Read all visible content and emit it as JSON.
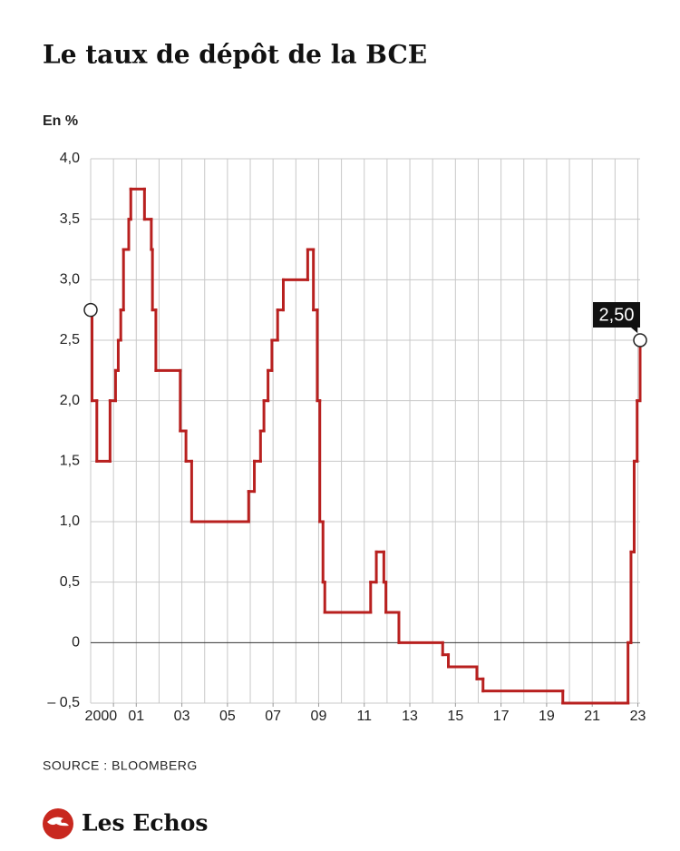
{
  "chart_data": {
    "type": "line",
    "line_style": "step",
    "title": "Le taux de dépôt de la BCE",
    "y_label": "En %",
    "source": "SOURCE : BLOOMBERG",
    "brand": "Les Echos",
    "grid": true,
    "xlim": [
      1999,
      2023.1
    ],
    "ylim": [
      -0.5,
      4.0
    ],
    "xticks": [
      {
        "value": 2000,
        "label": "2000"
      },
      {
        "value": 2001,
        "label": "01"
      },
      {
        "value": 2003,
        "label": "03"
      },
      {
        "value": 2005,
        "label": "05"
      },
      {
        "value": 2007,
        "label": "07"
      },
      {
        "value": 2009,
        "label": "09"
      },
      {
        "value": 2011,
        "label": "11"
      },
      {
        "value": 2013,
        "label": "13"
      },
      {
        "value": 2015,
        "label": "15"
      },
      {
        "value": 2017,
        "label": "17"
      },
      {
        "value": 2019,
        "label": "19"
      },
      {
        "value": 2021,
        "label": "21"
      },
      {
        "value": 2023,
        "label": "23"
      }
    ],
    "xgrid": [
      2000,
      2001,
      2002,
      2003,
      2004,
      2005,
      2006,
      2007,
      2008,
      2009,
      2010,
      2011,
      2012,
      2013,
      2014,
      2015,
      2016,
      2017,
      2018,
      2019,
      2020,
      2021,
      2022,
      2023
    ],
    "yticks": [
      {
        "value": 4.0,
        "label": "4,0"
      },
      {
        "value": 3.5,
        "label": "3,5"
      },
      {
        "value": 3.0,
        "label": "3,0"
      },
      {
        "value": 2.5,
        "label": "2,5"
      },
      {
        "value": 2.0,
        "label": "2,0"
      },
      {
        "value": 1.5,
        "label": "1,5"
      },
      {
        "value": 1.0,
        "label": "1,0"
      },
      {
        "value": 0.5,
        "label": "0,5"
      },
      0,
      {
        "value": -0.5,
        "label": "– 0,5"
      }
    ],
    "series": [
      {
        "name": "Taux de dépôt",
        "color": "#b8201f",
        "x": [
          1999.0,
          1999.06,
          1999.27,
          1999.85,
          2000.09,
          2000.21,
          2000.32,
          2000.44,
          2000.67,
          2000.76,
          2001.36,
          2001.66,
          2001.71,
          2001.86,
          2002.93,
          2003.18,
          2003.43,
          2005.93,
          2006.18,
          2006.45,
          2006.6,
          2006.78,
          2006.95,
          2007.2,
          2007.45,
          2008.52,
          2008.77,
          2008.94,
          2009.05,
          2009.19,
          2009.27,
          2011.28,
          2011.53,
          2011.86,
          2011.95,
          2012.52,
          2014.44,
          2014.69,
          2015.94,
          2016.21,
          2019.71,
          2022.57,
          2022.7,
          2022.84,
          2022.97,
          2023.1
        ],
        "values": [
          2.75,
          2.0,
          1.5,
          2.0,
          2.25,
          2.5,
          2.75,
          3.25,
          3.5,
          3.75,
          3.5,
          3.25,
          2.75,
          2.25,
          1.75,
          1.5,
          1.0,
          1.25,
          1.5,
          1.75,
          2.0,
          2.25,
          2.5,
          2.75,
          3.0,
          3.25,
          2.75,
          2.0,
          1.0,
          0.5,
          0.25,
          0.5,
          0.75,
          0.5,
          0.25,
          0.0,
          -0.1,
          -0.2,
          -0.3,
          -0.4,
          -0.5,
          0.0,
          0.75,
          1.5,
          2.0,
          2.5
        ],
        "value_labels": [
          null,
          null,
          null,
          null,
          null,
          null,
          null,
          null,
          null,
          null,
          null,
          null,
          null,
          null,
          null,
          null,
          null,
          null,
          null,
          null,
          null,
          null,
          null,
          null,
          null,
          null,
          null,
          null,
          null,
          null,
          null,
          null,
          null,
          null,
          null,
          null,
          null,
          null,
          null,
          null,
          null,
          null,
          null,
          null,
          null,
          "2,50"
        ]
      }
    ]
  }
}
